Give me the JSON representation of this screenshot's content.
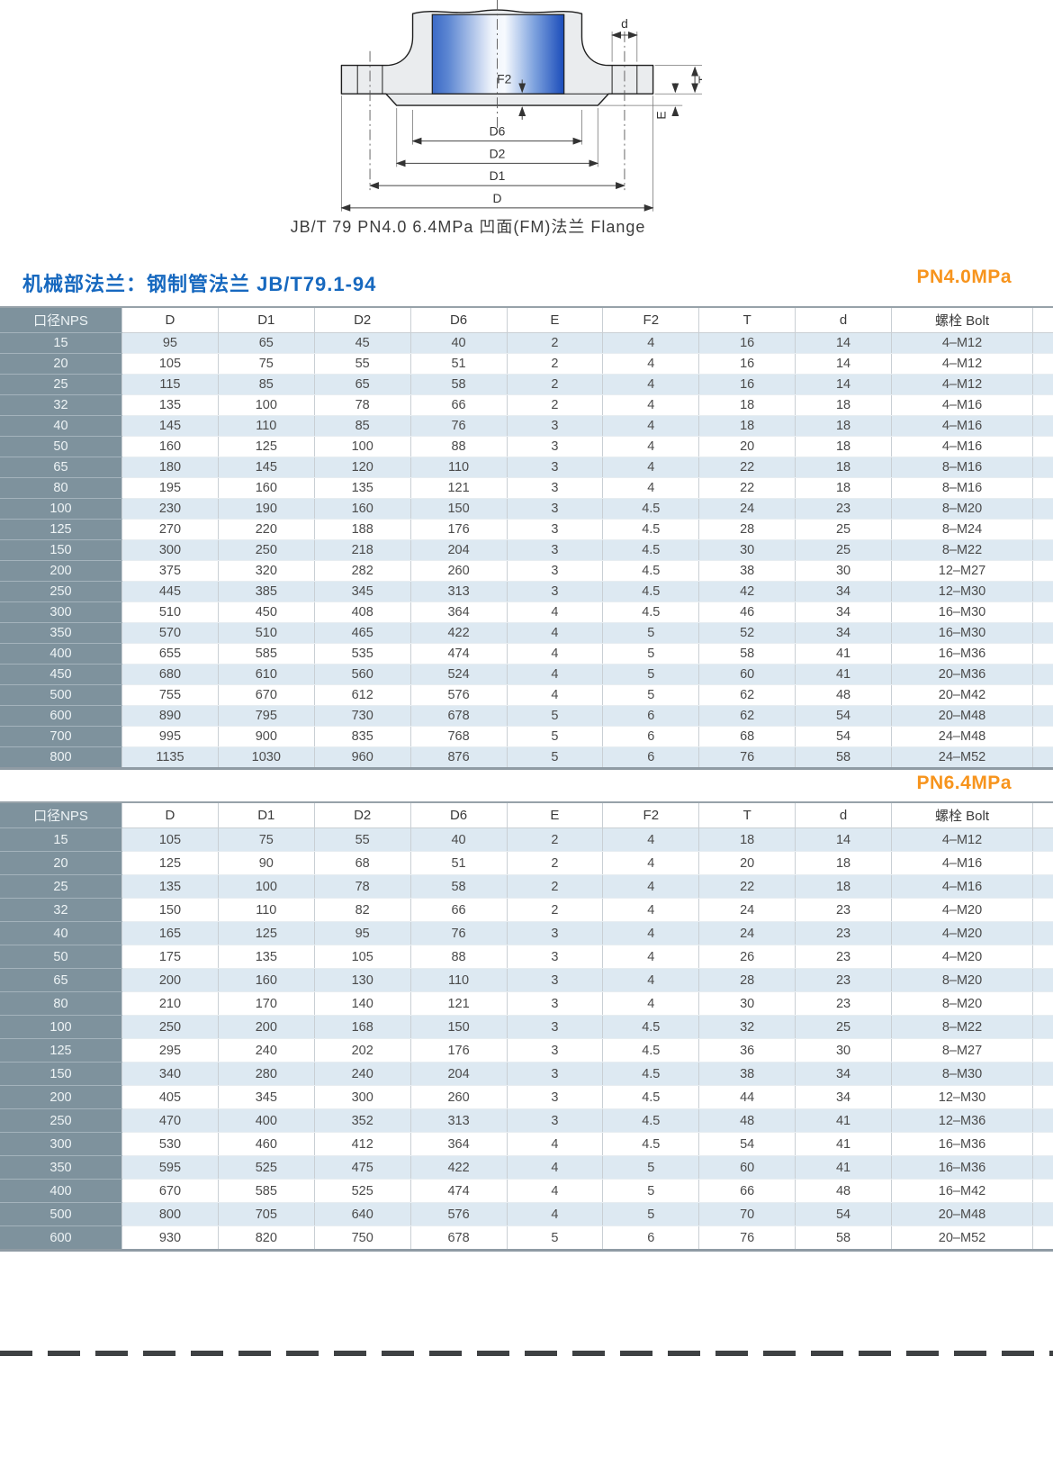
{
  "drawing": {
    "caption": "JB/T 79 PN4.0 6.4MPa 凹面(FM)法兰 Flange",
    "labels": {
      "d": "d",
      "f2": "F2",
      "t": "T",
      "e": "E",
      "d6": "D6",
      "d2": "D2",
      "d1": "D1",
      "dd": "D"
    }
  },
  "section_title": "机械部法兰：钢制管法兰 JB/T79.1-94",
  "columns": [
    "口径NPS",
    "D",
    "D1",
    "D2",
    "D6",
    "E",
    "F2",
    "T",
    "d",
    "螺栓 Bolt"
  ],
  "tables": {
    "pn40": {
      "pressure_label": "PN4.0MPa",
      "rows": [
        [
          "15",
          "95",
          "65",
          "45",
          "40",
          "2",
          "4",
          "16",
          "14",
          "4–M12"
        ],
        [
          "20",
          "105",
          "75",
          "55",
          "51",
          "2",
          "4",
          "16",
          "14",
          "4–M12"
        ],
        [
          "25",
          "115",
          "85",
          "65",
          "58",
          "2",
          "4",
          "16",
          "14",
          "4–M12"
        ],
        [
          "32",
          "135",
          "100",
          "78",
          "66",
          "2",
          "4",
          "18",
          "18",
          "4–M16"
        ],
        [
          "40",
          "145",
          "110",
          "85",
          "76",
          "3",
          "4",
          "18",
          "18",
          "4–M16"
        ],
        [
          "50",
          "160",
          "125",
          "100",
          "88",
          "3",
          "4",
          "20",
          "18",
          "4–M16"
        ],
        [
          "65",
          "180",
          "145",
          "120",
          "110",
          "3",
          "4",
          "22",
          "18",
          "8–M16"
        ],
        [
          "80",
          "195",
          "160",
          "135",
          "121",
          "3",
          "4",
          "22",
          "18",
          "8–M16"
        ],
        [
          "100",
          "230",
          "190",
          "160",
          "150",
          "3",
          "4.5",
          "24",
          "23",
          "8–M20"
        ],
        [
          "125",
          "270",
          "220",
          "188",
          "176",
          "3",
          "4.5",
          "28",
          "25",
          "8–M24"
        ],
        [
          "150",
          "300",
          "250",
          "218",
          "204",
          "3",
          "4.5",
          "30",
          "25",
          "8–M22"
        ],
        [
          "200",
          "375",
          "320",
          "282",
          "260",
          "3",
          "4.5",
          "38",
          "30",
          "12–M27"
        ],
        [
          "250",
          "445",
          "385",
          "345",
          "313",
          "3",
          "4.5",
          "42",
          "34",
          "12–M30"
        ],
        [
          "300",
          "510",
          "450",
          "408",
          "364",
          "4",
          "4.5",
          "46",
          "34",
          "16–M30"
        ],
        [
          "350",
          "570",
          "510",
          "465",
          "422",
          "4",
          "5",
          "52",
          "34",
          "16–M30"
        ],
        [
          "400",
          "655",
          "585",
          "535",
          "474",
          "4",
          "5",
          "58",
          "41",
          "16–M36"
        ],
        [
          "450",
          "680",
          "610",
          "560",
          "524",
          "4",
          "5",
          "60",
          "41",
          "20–M36"
        ],
        [
          "500",
          "755",
          "670",
          "612",
          "576",
          "4",
          "5",
          "62",
          "48",
          "20–M42"
        ],
        [
          "600",
          "890",
          "795",
          "730",
          "678",
          "5",
          "6",
          "62",
          "54",
          "20–M48"
        ],
        [
          "700",
          "995",
          "900",
          "835",
          "768",
          "5",
          "6",
          "68",
          "54",
          "24–M48"
        ],
        [
          "800",
          "1135",
          "1030",
          "960",
          "876",
          "5",
          "6",
          "76",
          "58",
          "24–M52"
        ]
      ]
    },
    "pn64": {
      "pressure_label": "PN6.4MPa",
      "rows": [
        [
          "15",
          "105",
          "75",
          "55",
          "40",
          "2",
          "4",
          "18",
          "14",
          "4–M12"
        ],
        [
          "20",
          "125",
          "90",
          "68",
          "51",
          "2",
          "4",
          "20",
          "18",
          "4–M16"
        ],
        [
          "25",
          "135",
          "100",
          "78",
          "58",
          "2",
          "4",
          "22",
          "18",
          "4–M16"
        ],
        [
          "32",
          "150",
          "110",
          "82",
          "66",
          "2",
          "4",
          "24",
          "23",
          "4–M20"
        ],
        [
          "40",
          "165",
          "125",
          "95",
          "76",
          "3",
          "4",
          "24",
          "23",
          "4–M20"
        ],
        [
          "50",
          "175",
          "135",
          "105",
          "88",
          "3",
          "4",
          "26",
          "23",
          "4–M20"
        ],
        [
          "65",
          "200",
          "160",
          "130",
          "110",
          "3",
          "4",
          "28",
          "23",
          "8–M20"
        ],
        [
          "80",
          "210",
          "170",
          "140",
          "121",
          "3",
          "4",
          "30",
          "23",
          "8–M20"
        ],
        [
          "100",
          "250",
          "200",
          "168",
          "150",
          "3",
          "4.5",
          "32",
          "25",
          "8–M22"
        ],
        [
          "125",
          "295",
          "240",
          "202",
          "176",
          "3",
          "4.5",
          "36",
          "30",
          "8–M27"
        ],
        [
          "150",
          "340",
          "280",
          "240",
          "204",
          "3",
          "4.5",
          "38",
          "34",
          "8–M30"
        ],
        [
          "200",
          "405",
          "345",
          "300",
          "260",
          "3",
          "4.5",
          "44",
          "34",
          "12–M30"
        ],
        [
          "250",
          "470",
          "400",
          "352",
          "313",
          "3",
          "4.5",
          "48",
          "41",
          "12–M36"
        ],
        [
          "300",
          "530",
          "460",
          "412",
          "364",
          "4",
          "4.5",
          "54",
          "41",
          "16–M36"
        ],
        [
          "350",
          "595",
          "525",
          "475",
          "422",
          "4",
          "5",
          "60",
          "41",
          "16–M36"
        ],
        [
          "400",
          "670",
          "585",
          "525",
          "474",
          "4",
          "5",
          "66",
          "48",
          "16–M42"
        ],
        [
          "500",
          "800",
          "705",
          "640",
          "576",
          "4",
          "5",
          "70",
          "54",
          "20–M48"
        ],
        [
          "600",
          "930",
          "820",
          "750",
          "678",
          "5",
          "6",
          "76",
          "58",
          "20–M52"
        ]
      ]
    }
  },
  "colors": {
    "title_blue": "#1668bf",
    "pressure_orange": "#f7941d",
    "row_header_bg": "#7e929d",
    "row_stripe_blue": "#dde9f2",
    "bore_gradient_blue": "#1b4cba"
  }
}
